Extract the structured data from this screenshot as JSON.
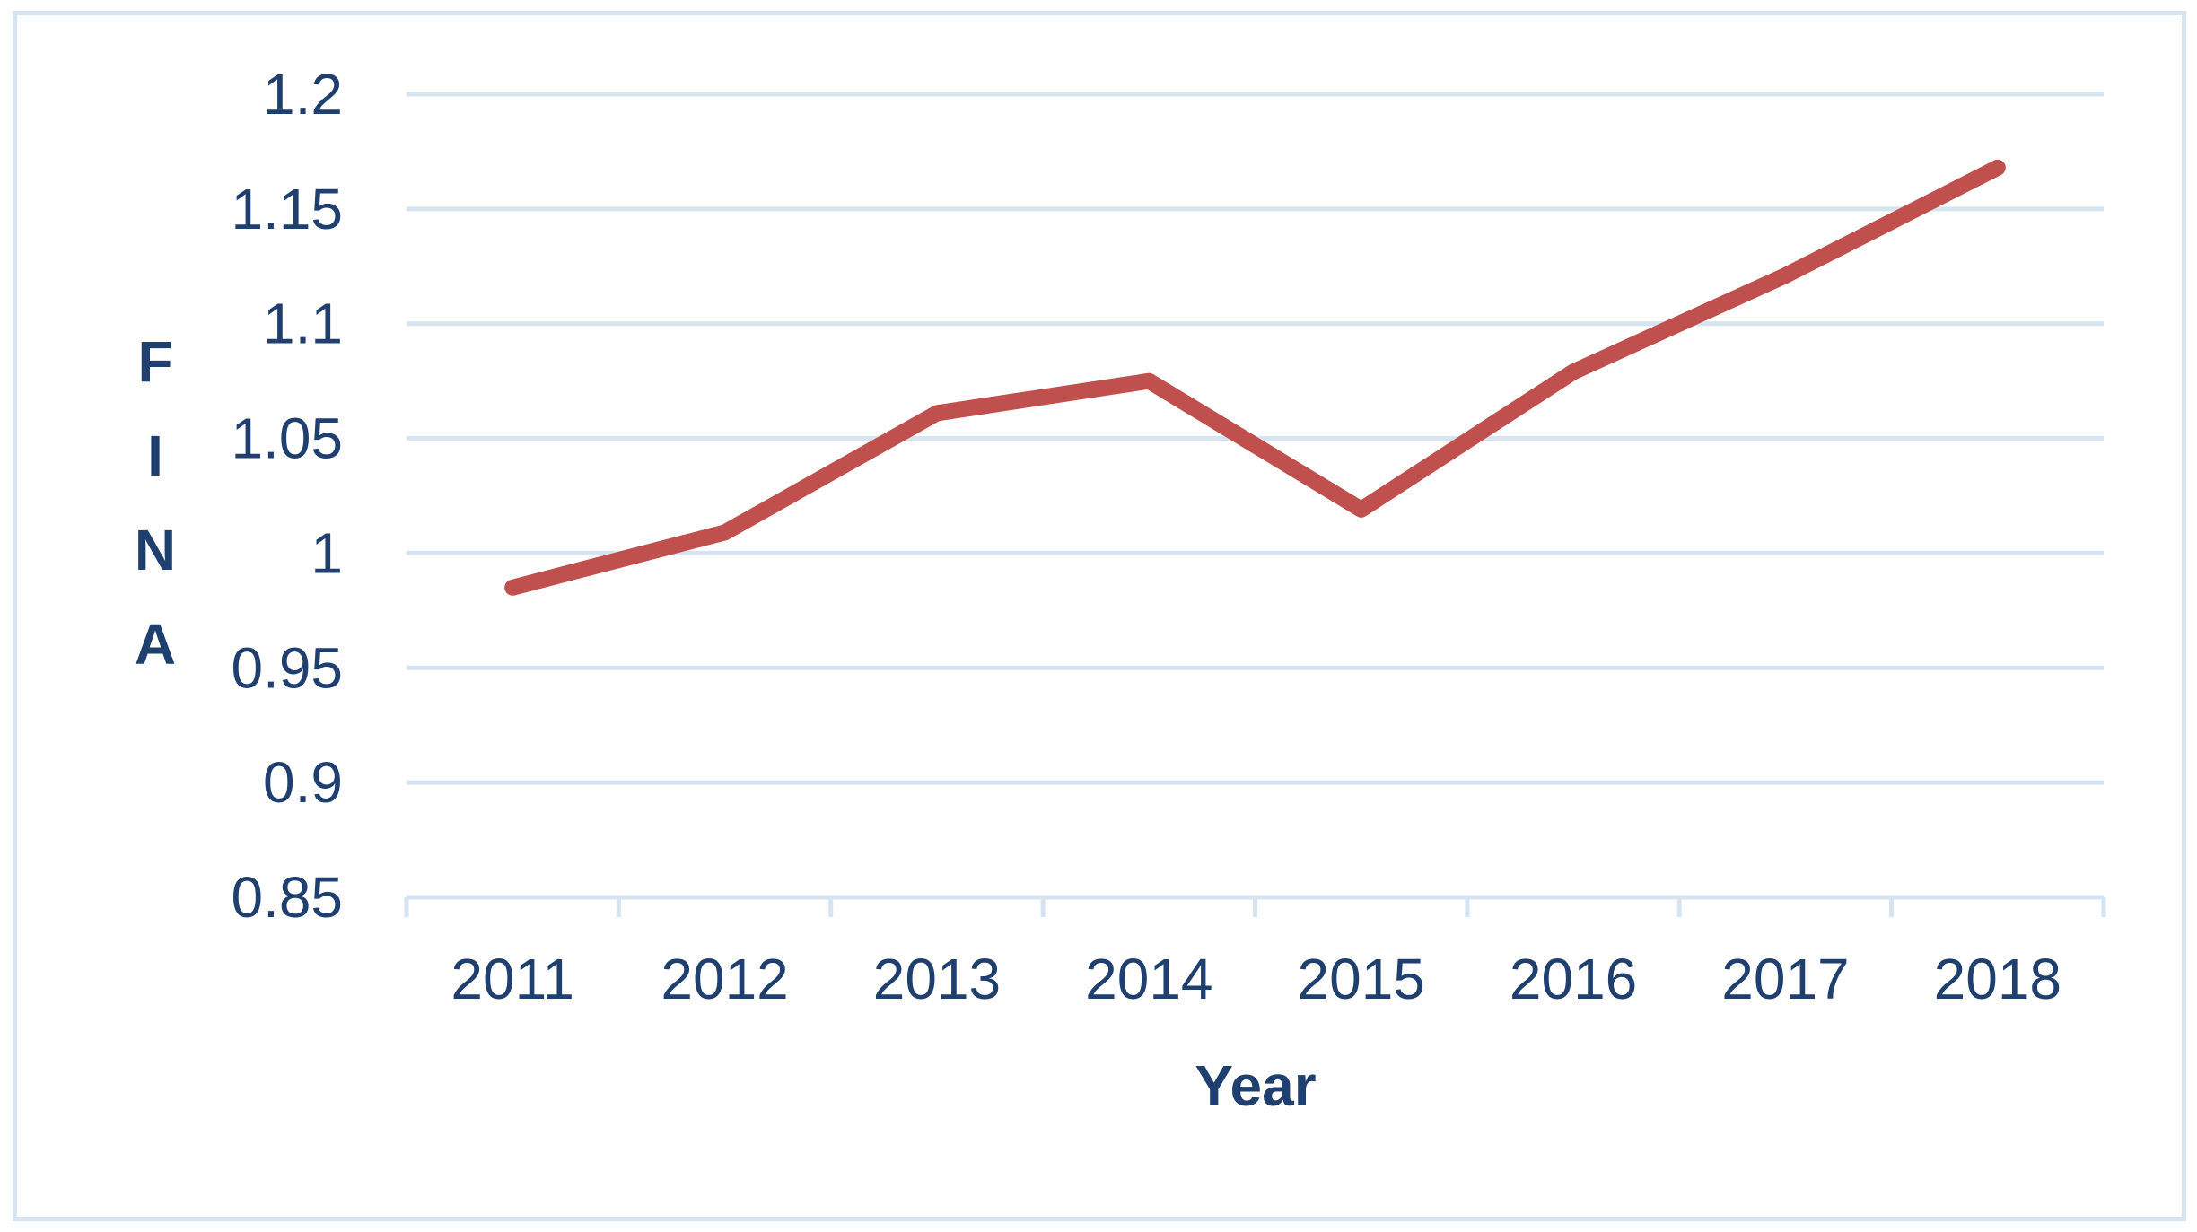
{
  "chart_data": {
    "type": "line",
    "title": "",
    "xlabel": "Year",
    "ylabel": "FINA",
    "categories": [
      "2011",
      "2012",
      "2013",
      "2014",
      "2015",
      "2016",
      "2017",
      "2018"
    ],
    "series": [
      {
        "values": [
          0.985,
          1.009,
          1.061,
          1.075,
          1.019,
          1.079,
          1.121,
          1.168
        ],
        "color": "#c0504d"
      }
    ],
    "ylim": [
      0.85,
      1.2
    ],
    "yticks": [
      "0.85",
      "0.9",
      "0.95",
      "1",
      "1.05",
      "1.1",
      "1.15",
      "1.2"
    ],
    "grid": true,
    "legend": "none"
  },
  "colors": {
    "gridline": "#d6e4f1",
    "axis": "#d6e4f1",
    "text": "#1f3f6e",
    "line": "#c0504d",
    "frame": "#d6e4f1"
  }
}
